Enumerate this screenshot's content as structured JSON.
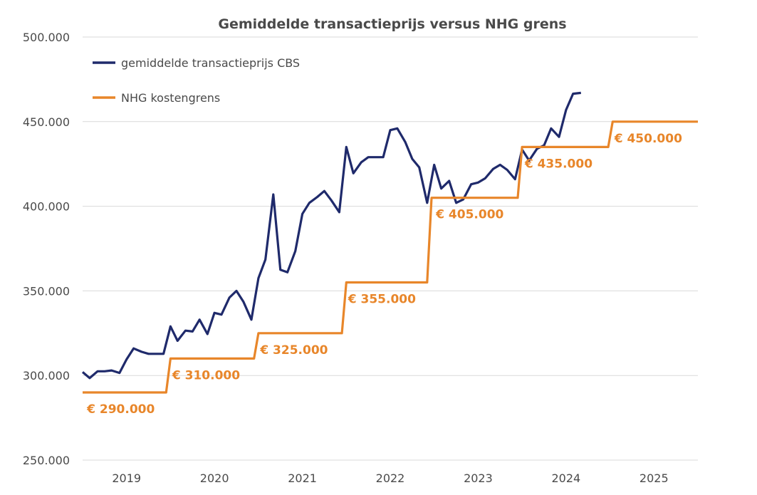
{
  "chart_data": {
    "type": "line",
    "title": "Gemiddelde transactieprijs versus NHG grens",
    "xlabel": "",
    "ylabel": "",
    "ylim": [
      250000,
      500000
    ],
    "xlim": [
      2018.5,
      2025.5
    ],
    "grid": true,
    "legend_position": "top-left",
    "y_ticks": [
      {
        "value": 500000,
        "label": "500.000"
      },
      {
        "value": 450000,
        "label": "450.000"
      },
      {
        "value": 400000,
        "label": "400.000"
      },
      {
        "value": 350000,
        "label": "350.000"
      },
      {
        "value": 300000,
        "label": "300.000"
      },
      {
        "value": 250000,
        "label": "250.000"
      }
    ],
    "x_ticks": [
      {
        "value": 2019,
        "label": "2019"
      },
      {
        "value": 2020,
        "label": "2020"
      },
      {
        "value": 2021,
        "label": "2021"
      },
      {
        "value": 2022,
        "label": "2022"
      },
      {
        "value": 2023,
        "label": "2023"
      },
      {
        "value": 2024,
        "label": "2024"
      },
      {
        "value": 2025,
        "label": "2025"
      }
    ],
    "series": [
      {
        "name": "gemiddelde transactieprijs CBS",
        "color": "#1f2a6b",
        "points": [
          [
            2018.5,
            302000
          ],
          [
            2018.58,
            298500
          ],
          [
            2018.67,
            302500
          ],
          [
            2018.75,
            302500
          ],
          [
            2018.83,
            303000
          ],
          [
            2018.92,
            301500
          ],
          [
            2019.0,
            309500
          ],
          [
            2019.08,
            316000
          ],
          [
            2019.17,
            314000
          ],
          [
            2019.25,
            312800
          ],
          [
            2019.33,
            312800
          ],
          [
            2019.42,
            312800
          ],
          [
            2019.5,
            329000
          ],
          [
            2019.58,
            320500
          ],
          [
            2019.67,
            326500
          ],
          [
            2019.75,
            326000
          ],
          [
            2019.83,
            333000
          ],
          [
            2019.92,
            324500
          ],
          [
            2020.0,
            337000
          ],
          [
            2020.08,
            336000
          ],
          [
            2020.17,
            346000
          ],
          [
            2020.25,
            350000
          ],
          [
            2020.33,
            343500
          ],
          [
            2020.42,
            333000
          ],
          [
            2020.5,
            357500
          ],
          [
            2020.58,
            368500
          ],
          [
            2020.67,
            407000
          ],
          [
            2020.75,
            362500
          ],
          [
            2020.83,
            361000
          ],
          [
            2020.92,
            373500
          ],
          [
            2021.0,
            395500
          ],
          [
            2021.08,
            402000
          ],
          [
            2021.17,
            405500
          ],
          [
            2021.25,
            409000
          ],
          [
            2021.33,
            403500
          ],
          [
            2021.42,
            396500
          ],
          [
            2021.5,
            435000
          ],
          [
            2021.58,
            419500
          ],
          [
            2021.67,
            426000
          ],
          [
            2021.75,
            429000
          ],
          [
            2021.83,
            429000
          ],
          [
            2021.92,
            429000
          ],
          [
            2022.0,
            445000
          ],
          [
            2022.08,
            446000
          ],
          [
            2022.17,
            438000
          ],
          [
            2022.25,
            428000
          ],
          [
            2022.33,
            423000
          ],
          [
            2022.42,
            402000
          ],
          [
            2022.5,
            424500
          ],
          [
            2022.58,
            410500
          ],
          [
            2022.67,
            415000
          ],
          [
            2022.75,
            402000
          ],
          [
            2022.83,
            404000
          ],
          [
            2022.92,
            413000
          ],
          [
            2023.0,
            414000
          ],
          [
            2023.08,
            416500
          ],
          [
            2023.17,
            422000
          ],
          [
            2023.25,
            424500
          ],
          [
            2023.33,
            421500
          ],
          [
            2023.42,
            416000
          ],
          [
            2023.5,
            433500
          ],
          [
            2023.58,
            427000
          ],
          [
            2023.67,
            434000
          ],
          [
            2023.75,
            436000
          ],
          [
            2023.83,
            446000
          ],
          [
            2023.92,
            441000
          ],
          [
            2024.0,
            457000
          ],
          [
            2024.08,
            466500
          ],
          [
            2024.17,
            467000
          ]
        ]
      },
      {
        "name": "NHG kostengrens",
        "color": "#e8862a",
        "step": true,
        "points": [
          [
            2018.5,
            290000
          ],
          [
            2019.45,
            290000
          ],
          [
            2019.5,
            310000
          ],
          [
            2020.45,
            310000
          ],
          [
            2020.5,
            325000
          ],
          [
            2021.45,
            325000
          ],
          [
            2021.5,
            355000
          ],
          [
            2022.42,
            355000
          ],
          [
            2022.47,
            405000
          ],
          [
            2023.45,
            405000
          ],
          [
            2023.5,
            435000
          ],
          [
            2024.48,
            435000
          ],
          [
            2024.53,
            450000
          ],
          [
            2025.5,
            450000
          ]
        ]
      }
    ],
    "annotations": [
      {
        "x": 2018.55,
        "y": 290000,
        "text": "€ 290.000"
      },
      {
        "x": 2019.52,
        "y": 310000,
        "text": "€ 310.000"
      },
      {
        "x": 2020.52,
        "y": 325000,
        "text": "€ 325.000"
      },
      {
        "x": 2021.52,
        "y": 355000,
        "text": "€ 355.000"
      },
      {
        "x": 2022.52,
        "y": 405000,
        "text": "€ 405.000"
      },
      {
        "x": 2023.53,
        "y": 435000,
        "text": "€ 435.000"
      },
      {
        "x": 2024.55,
        "y": 450000,
        "text": "€ 450.000"
      }
    ]
  }
}
